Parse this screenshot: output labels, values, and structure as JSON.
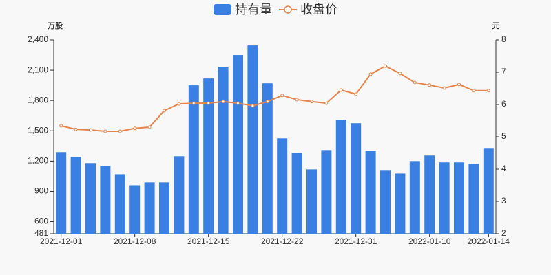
{
  "chart_data": {
    "type": "bar",
    "legend": "top",
    "grid": false,
    "y_unit_label": "万股",
    "y2_unit_label": "元",
    "categories": [
      "2021-12-01",
      null,
      null,
      null,
      null,
      "2021-12-08",
      null,
      null,
      null,
      null,
      "2021-12-15",
      null,
      null,
      null,
      null,
      "2021-12-22",
      null,
      null,
      null,
      null,
      "2021-12-31",
      null,
      null,
      null,
      null,
      "2022-01-10",
      null,
      null,
      null,
      "2022-01-14"
    ],
    "series": [
      {
        "name": "持有量",
        "type": "bar",
        "color": "#3a80e2",
        "values": [
          1289,
          1241,
          1180,
          1152,
          1070,
          961,
          989,
          989,
          1248,
          1950,
          2018,
          2134,
          2250,
          2345,
          1970,
          1425,
          1282,
          1118,
          1309,
          1609,
          1575,
          1302,
          1105,
          1077,
          1200,
          1255,
          1187,
          1187,
          1173,
          1323
        ]
      },
      {
        "name": "收盘价",
        "type": "line",
        "axis": "y2",
        "color": "#e8834a",
        "values": [
          5.34,
          5.23,
          5.21,
          5.17,
          5.17,
          5.26,
          5.3,
          5.81,
          6.02,
          6.04,
          6.04,
          6.09,
          6.04,
          5.96,
          6.09,
          6.28,
          6.15,
          6.09,
          6.04,
          6.45,
          6.32,
          6.94,
          7.19,
          6.96,
          6.68,
          6.6,
          6.51,
          6.62,
          6.43,
          6.43
        ]
      }
    ],
    "ylim": [
      481,
      2400
    ],
    "yticks": [
      481,
      {
        "value": 600,
        "label": "600"
      },
      {
        "value": 900,
        "label": "900"
      },
      {
        "value": 1200,
        "label": "1,200"
      },
      {
        "value": 1500,
        "label": "1,500"
      },
      {
        "value": 1800,
        "label": "1,800"
      },
      {
        "value": 2100,
        "label": "2,100"
      },
      {
        "value": 2400,
        "label": "2,400"
      }
    ],
    "y2lim": [
      2,
      8
    ],
    "y2ticks": [
      2,
      3,
      4,
      5,
      6,
      7,
      8
    ]
  }
}
